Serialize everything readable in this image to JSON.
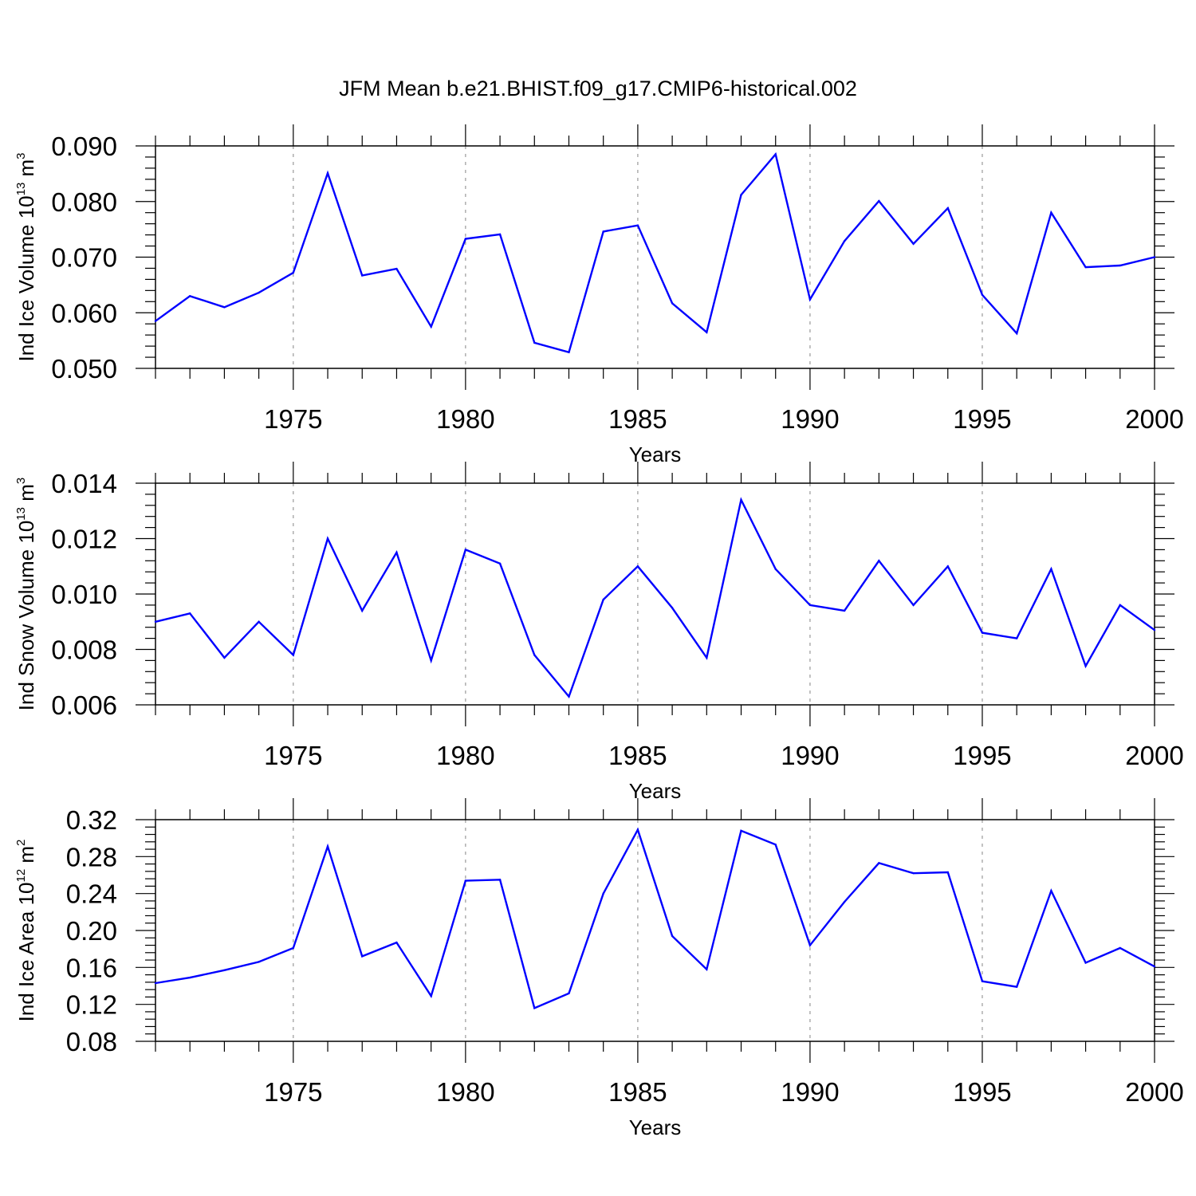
{
  "chart_data": [
    {
      "type": "line",
      "title": "JFM Mean b.e21.BHIST.f09_g17.CMIP6-historical.002",
      "xlabel": "Years",
      "ylabel": {
        "prefix": "Ind Ice Volume 10",
        "exp": "13",
        "unit": " m",
        "unit_exp": "3"
      },
      "xlim": [
        1971,
        2000
      ],
      "ylim": [
        0.05,
        0.09
      ],
      "xticks": [
        "1975",
        "1980",
        "1985",
        "1990",
        "1995",
        "2000"
      ],
      "yticks": [
        "0.050",
        "0.060",
        "0.070",
        "0.080",
        "0.090"
      ],
      "grid": "dashed vertical lines at x major ticks",
      "series": [
        {
          "color": "#0000ff",
          "x": [
            1971,
            1972,
            1973,
            1974,
            1975,
            1976,
            1977,
            1978,
            1979,
            1980,
            1981,
            1982,
            1983,
            1984,
            1985,
            1986,
            1987,
            1988,
            1989,
            1990,
            1991,
            1992,
            1993,
            1994,
            1995,
            1996,
            1997,
            1998,
            1999,
            2000
          ],
          "values": [
            0.0585,
            0.063,
            0.061,
            0.0636,
            0.0672,
            0.0851,
            0.0667,
            0.0679,
            0.0575,
            0.0733,
            0.0741,
            0.0546,
            0.0529,
            0.0746,
            0.0757,
            0.0617,
            0.0565,
            0.0812,
            0.0885,
            0.0624,
            0.0729,
            0.0801,
            0.0724,
            0.0788,
            0.0632,
            0.0563,
            0.078,
            0.0682,
            0.0685,
            0.07
          ]
        }
      ]
    },
    {
      "type": "line",
      "xlabel": "Years",
      "ylabel": {
        "prefix": "Ind Snow Volume 10",
        "exp": "13",
        "unit": " m",
        "unit_exp": "3"
      },
      "xlim": [
        1971,
        2000
      ],
      "ylim": [
        0.006,
        0.014
      ],
      "xticks": [
        "1975",
        "1980",
        "1985",
        "1990",
        "1995",
        "2000"
      ],
      "yticks": [
        "0.006",
        "0.008",
        "0.010",
        "0.012",
        "0.014"
      ],
      "grid": "dashed vertical lines at x major ticks",
      "series": [
        {
          "color": "#0000ff",
          "x": [
            1971,
            1972,
            1973,
            1974,
            1975,
            1976,
            1977,
            1978,
            1979,
            1980,
            1981,
            1982,
            1983,
            1984,
            1985,
            1986,
            1987,
            1988,
            1989,
            1990,
            1991,
            1992,
            1993,
            1994,
            1995,
            1996,
            1997,
            1998,
            1999,
            2000
          ],
          "values": [
            0.009,
            0.0093,
            0.0077,
            0.009,
            0.0078,
            0.012,
            0.0094,
            0.0115,
            0.0076,
            0.0116,
            0.0111,
            0.0078,
            0.0063,
            0.0098,
            0.011,
            0.0095,
            0.0077,
            0.0134,
            0.0109,
            0.0096,
            0.0094,
            0.0112,
            0.0096,
            0.011,
            0.0086,
            0.0084,
            0.0109,
            0.0074,
            0.0096,
            0.0087
          ]
        }
      ]
    },
    {
      "type": "line",
      "xlabel": "Years",
      "ylabel": {
        "prefix": "Ind Ice Area 10",
        "exp": "12",
        "unit": " m",
        "unit_exp": "2"
      },
      "xlim": [
        1971,
        2000
      ],
      "ylim": [
        0.08,
        0.32
      ],
      "xticks": [
        "1975",
        "1980",
        "1985",
        "1990",
        "1995",
        "2000"
      ],
      "yticks": [
        "0.08",
        "0.12",
        "0.16",
        "0.20",
        "0.24",
        "0.28",
        "0.32"
      ],
      "grid": "dashed vertical lines at x major ticks",
      "series": [
        {
          "color": "#0000ff",
          "x": [
            1971,
            1972,
            1973,
            1974,
            1975,
            1976,
            1977,
            1978,
            1979,
            1980,
            1981,
            1982,
            1983,
            1984,
            1985,
            1986,
            1987,
            1988,
            1989,
            1990,
            1991,
            1992,
            1993,
            1994,
            1995,
            1996,
            1997,
            1998,
            1999,
            2000
          ],
          "values": [
            0.143,
            0.149,
            0.157,
            0.166,
            0.181,
            0.291,
            0.172,
            0.187,
            0.129,
            0.254,
            0.255,
            0.116,
            0.132,
            0.24,
            0.309,
            0.194,
            0.158,
            0.308,
            0.293,
            0.184,
            0.231,
            0.273,
            0.262,
            0.263,
            0.145,
            0.139,
            0.243,
            0.165,
            0.181,
            0.161
          ]
        }
      ]
    }
  ]
}
